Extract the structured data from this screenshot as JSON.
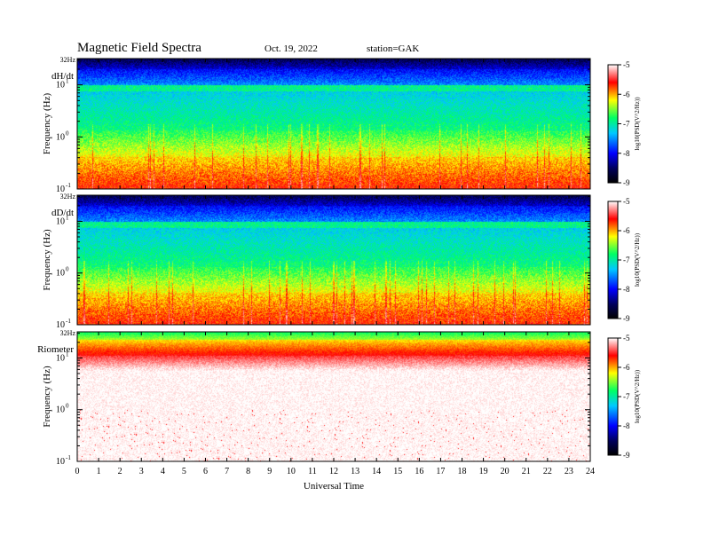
{
  "header": {
    "title": "Magnetic  Field  Spectra",
    "date": "Oct. 19, 2022",
    "station": "station=GAK"
  },
  "colors": {
    "colorbar": [
      "#000000",
      "#000066",
      "#0000ff",
      "#00c8ff",
      "#00ff64",
      "#ffff00",
      "#ff0000",
      "#ffffff"
    ]
  },
  "chart_data": [
    {
      "type": "heatmap",
      "panel_label": "dH/dt",
      "ylabel": "Frequency  (Hz)",
      "ytick_labels": [
        "32Hz",
        "10",
        "1",
        "10",
        "-1",
        "0",
        "-1"
      ],
      "yticks": [
        {
          "base": "10",
          "exp": "1",
          "value": 10
        },
        {
          "base": "10",
          "exp": "0",
          "value": 1
        },
        {
          "base": "10",
          "exp": "-1",
          "value": 0.1
        }
      ],
      "top_label": "32Hz",
      "ylim": [
        0.1,
        32
      ],
      "yscale": "log",
      "xlim": [
        0,
        24
      ],
      "colorbar": {
        "label": "log10(PSD(V^2/Hz))",
        "ticks": [
          "-5",
          "-6",
          "-7",
          "-8",
          "-9"
        ],
        "range": [
          -9,
          -5
        ]
      }
    },
    {
      "type": "heatmap",
      "panel_label": "dD/dt",
      "ylabel": "Frequency  (Hz)",
      "yticks": [
        {
          "base": "10",
          "exp": "1",
          "value": 10
        },
        {
          "base": "10",
          "exp": "0",
          "value": 1
        },
        {
          "base": "10",
          "exp": "-1",
          "value": 0.1
        }
      ],
      "top_label": "32Hz",
      "ylim": [
        0.1,
        32
      ],
      "yscale": "log",
      "xlim": [
        0,
        24
      ],
      "colorbar": {
        "label": "log10(PSD(V^2/Hz))",
        "ticks": [
          "-5",
          "-6",
          "-7",
          "-8",
          "-9"
        ],
        "range": [
          -9,
          -5
        ]
      }
    },
    {
      "type": "heatmap",
      "panel_label": "Riometer",
      "ylabel": "Frequency  (Hz)",
      "yticks": [
        {
          "base": "10",
          "exp": "1",
          "value": 10
        },
        {
          "base": "10",
          "exp": "0",
          "value": 1
        },
        {
          "base": "10",
          "exp": "-1",
          "value": 0.1
        }
      ],
      "top_label": "32Hz",
      "ylim": [
        0.1,
        32
      ],
      "yscale": "log",
      "xlim": [
        0,
        24
      ],
      "colorbar": {
        "label": "log10(PSD(V^2/Hz))",
        "ticks": [
          "-5",
          "-6",
          "-7",
          "-8",
          "-9"
        ],
        "range": [
          -9,
          -5
        ]
      }
    }
  ],
  "xaxis": {
    "label": "Universal  Time",
    "ticks": [
      "0",
      "1",
      "2",
      "3",
      "4",
      "5",
      "6",
      "7",
      "8",
      "9",
      "10",
      "11",
      "12",
      "13",
      "14",
      "15",
      "16",
      "17",
      "18",
      "19",
      "20",
      "21",
      "22",
      "23",
      "24"
    ]
  }
}
